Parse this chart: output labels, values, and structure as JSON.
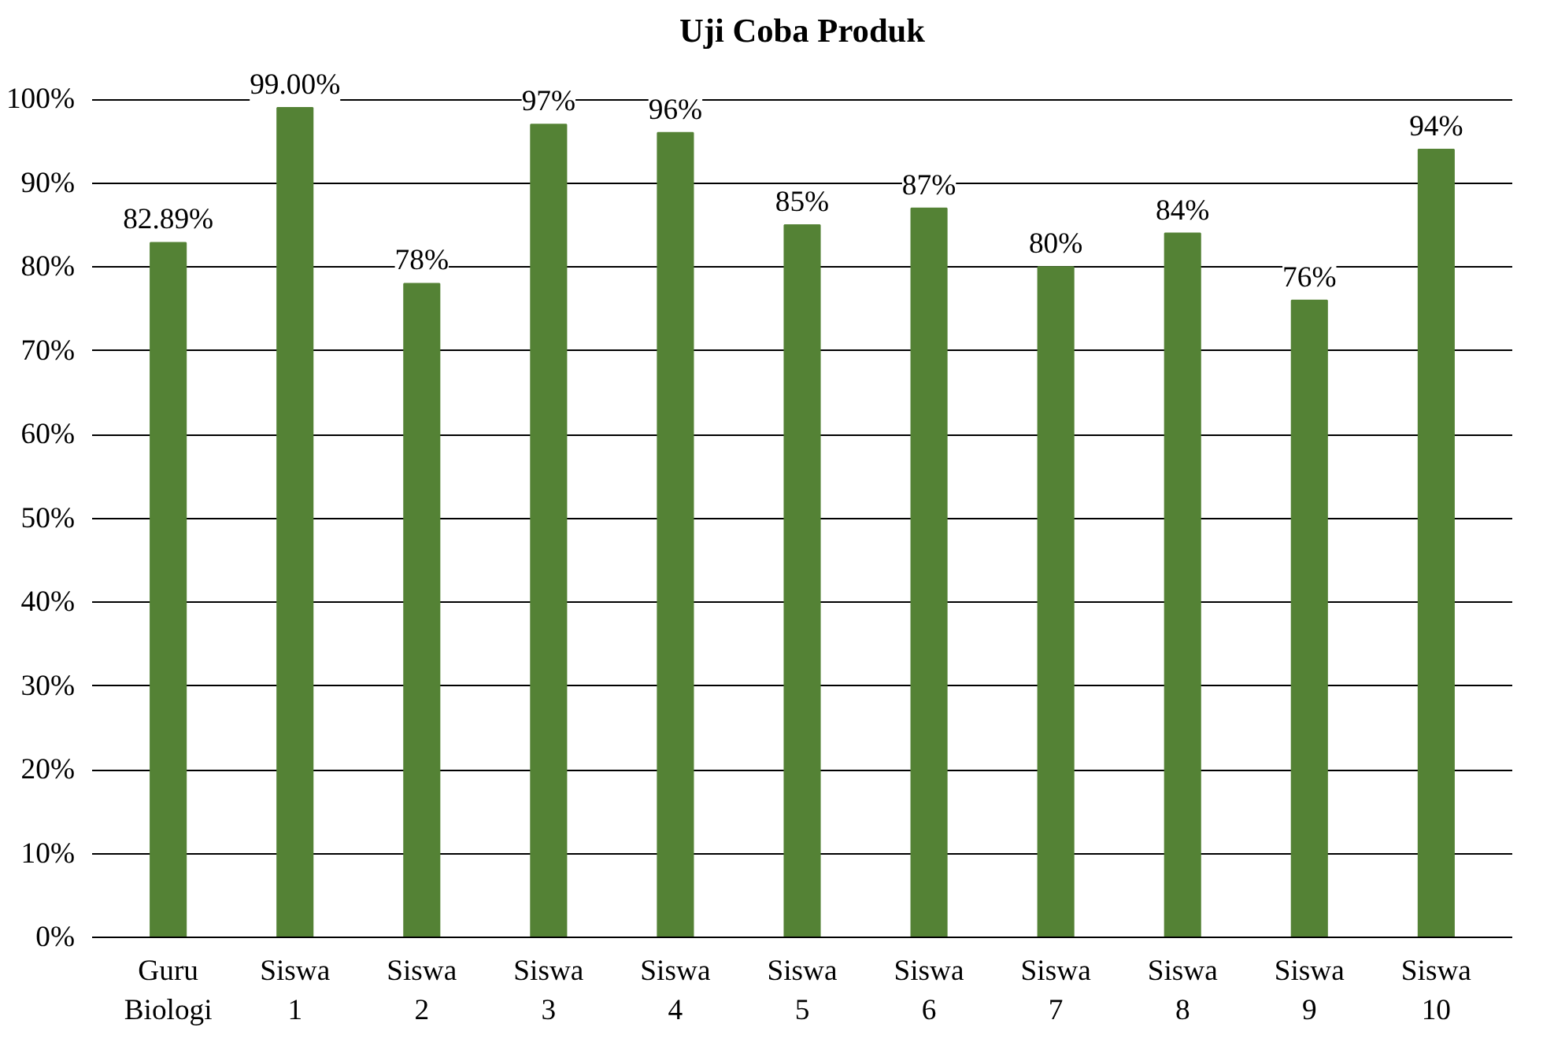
{
  "chart_data": {
    "type": "bar",
    "title": "Uji Coba Produk",
    "categories": [
      "Guru Biologi",
      "Siswa 1",
      "Siswa 2",
      "Siswa 3",
      "Siswa 4",
      "Siswa 5",
      "Siswa 6",
      "Siswa 7",
      "Siswa 8",
      "Siswa 9",
      "Siswa 10"
    ],
    "values": [
      82.89,
      99,
      78,
      97,
      96,
      85,
      87,
      80,
      84,
      76,
      94
    ],
    "value_labels": [
      "82.89%",
      "99.00%",
      "78%",
      "97%",
      "96%",
      "85%",
      "87%",
      "80%",
      "84%",
      "76%",
      "94%"
    ],
    "color": "#548235",
    "ylim": [
      0,
      100
    ],
    "yticks": [
      {
        "value": 0,
        "label": "0%"
      },
      {
        "value": 10,
        "label": "10%"
      },
      {
        "value": 20,
        "label": "20%"
      },
      {
        "value": 30,
        "label": "30%"
      },
      {
        "value": 40,
        "label": "40%"
      },
      {
        "value": 50,
        "label": "50%"
      },
      {
        "value": 60,
        "label": "60%"
      },
      {
        "value": 70,
        "label": "70%"
      },
      {
        "value": 80,
        "label": "80%"
      },
      {
        "value": 90,
        "label": "90%"
      },
      {
        "value": 100,
        "label": "100%"
      }
    ],
    "grid": "y"
  }
}
